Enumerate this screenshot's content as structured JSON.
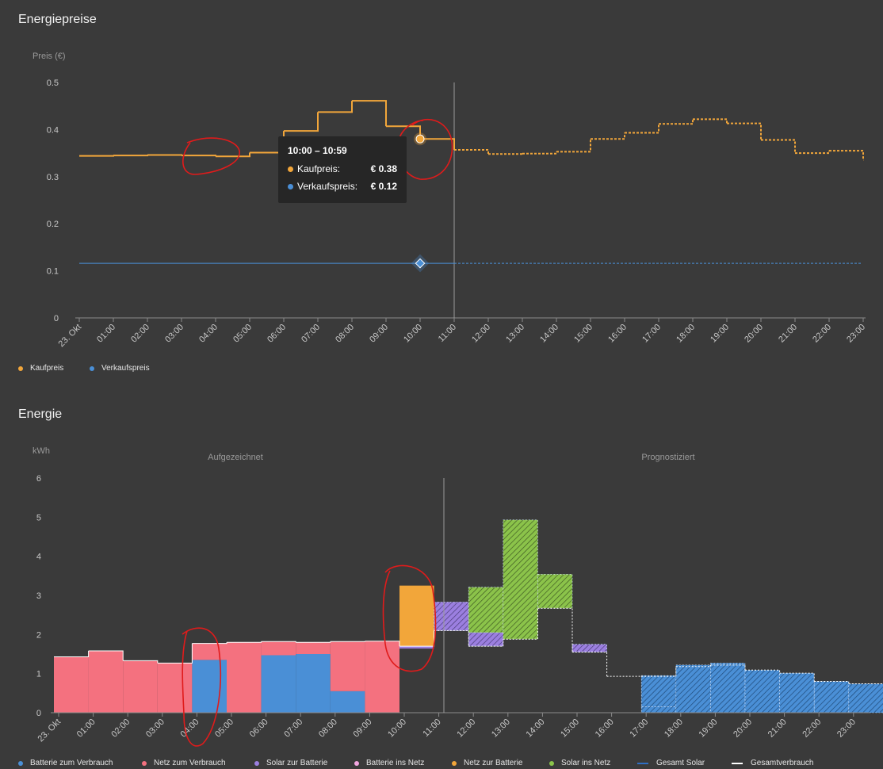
{
  "sections": {
    "prices_title": "Energiepreise",
    "energy_title": "Energie"
  },
  "tooltip": {
    "title": "10:00 – 10:59",
    "buy_label": "Kaufpreis:",
    "buy_value": "€ 0.38",
    "sell_label": "Verkaufspreis:",
    "sell_value": "€ 0.12"
  },
  "colors": {
    "kaufpreis": "#f2a63a",
    "verkaufspreis": "#4a8fd6",
    "batterie_zum_verbrauch": "#4a8fd6",
    "netz_zum_verbrauch": "#f4717f",
    "solar_zur_batterie": "#9b7fe0",
    "batterie_ins_netz": "#f2a6e0",
    "netz_zur_batterie": "#f2a63a",
    "solar_ins_netz": "#8bc34a",
    "gesamt_solar": "#2f6fc4",
    "gesamtverbrauch": "#ffffff"
  },
  "chart_data": [
    {
      "type": "line",
      "title": "Energiepreise",
      "ylabel": "Preis (€)",
      "ylim": [
        0,
        0.5
      ],
      "yticks": [
        "0",
        "0.1",
        "0.2",
        "0.3",
        "0.4",
        "0.5"
      ],
      "x": [
        "23. Okt",
        "01:00",
        "02:00",
        "03:00",
        "04:00",
        "05:00",
        "06:00",
        "07:00",
        "08:00",
        "09:00",
        "10:00",
        "11:00",
        "12:00",
        "13:00",
        "14:00",
        "15:00",
        "16:00",
        "17:00",
        "18:00",
        "19:00",
        "20:00",
        "21:00",
        "22:00",
        "23:00"
      ],
      "now_index": 11,
      "series": [
        {
          "name": "Kaufpreis",
          "values": [
            0.344,
            0.345,
            0.346,
            0.345,
            0.343,
            0.351,
            0.397,
            0.437,
            0.461,
            0.407,
            0.38,
            0.357,
            0.348,
            0.349,
            0.353,
            0.38,
            0.393,
            0.412,
            0.422,
            0.413,
            0.378,
            0.35,
            0.355,
            0.335
          ]
        },
        {
          "name": "Verkaufspreis",
          "values": [
            0.116,
            0.116,
            0.116,
            0.116,
            0.116,
            0.116,
            0.116,
            0.116,
            0.116,
            0.116,
            0.116,
            0.116,
            0.116,
            0.116,
            0.116,
            0.116,
            0.116,
            0.116,
            0.116,
            0.116,
            0.116,
            0.116,
            0.116,
            0.116
          ]
        }
      ],
      "legend": [
        "Kaufpreis",
        "Verkaufspreis"
      ]
    },
    {
      "type": "bar",
      "title": "Energie",
      "ylabel": "kWh",
      "ylim": [
        0,
        6
      ],
      "yticks": [
        "0",
        "1",
        "2",
        "3",
        "4",
        "5",
        "6"
      ],
      "region_labels": [
        "Aufgezeichnet",
        "Prognostiziert"
      ],
      "categories": [
        "23. Okt",
        "01:00",
        "02:00",
        "03:00",
        "04:00",
        "05:00",
        "06:00",
        "07:00",
        "08:00",
        "09:00",
        "10:00",
        "11:00",
        "12:00",
        "13:00",
        "14:00",
        "15:00",
        "16:00",
        "17:00",
        "18:00",
        "19:00",
        "20:00",
        "21:00",
        "22:00",
        "23:00"
      ],
      "now_index": 11,
      "series": [
        {
          "name": "Batterie zum Verbrauch",
          "values": [
            0,
            0,
            0,
            0,
            1.35,
            0,
            1.47,
            1.5,
            0.55,
            0,
            0,
            0,
            0,
            0,
            0,
            0,
            0,
            0.15,
            0,
            0,
            0,
            0,
            0,
            0
          ]
        },
        {
          "name": "Netz zum Verbrauch",
          "values": [
            1.43,
            1.58,
            1.33,
            1.27,
            0.42,
            1.8,
            0.35,
            0.3,
            1.27,
            1.83,
            0,
            0,
            0,
            0,
            0,
            0,
            0,
            0,
            0,
            0,
            0,
            0,
            0,
            0
          ]
        },
        {
          "name": "Solar zur Batterie",
          "values": [
            0,
            0,
            0,
            0,
            0,
            0,
            0,
            0,
            0,
            0,
            0.06,
            0.73,
            0.35,
            0,
            0,
            0.2,
            0,
            0,
            0,
            0,
            0,
            0,
            0,
            0
          ]
        },
        {
          "name": "Batterie ins Netz",
          "values": [
            0,
            0,
            0,
            0,
            0,
            0,
            0,
            0,
            0,
            0,
            0,
            0,
            0,
            0,
            0,
            0,
            0,
            0.8,
            1.22,
            1.27,
            1.09,
            1.01,
            0.8,
            0.74
          ]
        },
        {
          "name": "Netz zur Batterie",
          "values": [
            0,
            0,
            0,
            0,
            0,
            0,
            0,
            0,
            0,
            0,
            1.55,
            0,
            0,
            0,
            0,
            0,
            0,
            0,
            0,
            0,
            0,
            0,
            0,
            0
          ]
        },
        {
          "name": "Solar ins Netz",
          "values": [
            0,
            0,
            0,
            0,
            0,
            0,
            0,
            0,
            0,
            0,
            0,
            0,
            1.16,
            3.05,
            0.87,
            0,
            0,
            0,
            0,
            0,
            0,
            0,
            0,
            0
          ]
        },
        {
          "name": "Gesamt Solar",
          "values": [
            0,
            0,
            0,
            0,
            0,
            0,
            0,
            0,
            0,
            0,
            0,
            0,
            0,
            0,
            0,
            0,
            0,
            0,
            0,
            0,
            0,
            0,
            0,
            0
          ]
        },
        {
          "name": "Gesamtverbrauch",
          "values": [
            1.43,
            1.58,
            1.33,
            1.27,
            1.77,
            1.8,
            1.82,
            1.8,
            1.82,
            1.83,
            1.7,
            2.1,
            1.7,
            1.88,
            2.67,
            1.55,
            0.93,
            0.93,
            1.18,
            1.22,
            1.09,
            1.01,
            0.8,
            0.74
          ]
        }
      ],
      "legend": [
        "Batterie zum Verbrauch",
        "Netz zum Verbrauch",
        "Solar zur Batterie",
        "Batterie ins Netz",
        "Netz zur Batterie",
        "Solar ins Netz",
        "Gesamt Solar",
        "Gesamtverbrauch"
      ]
    }
  ]
}
